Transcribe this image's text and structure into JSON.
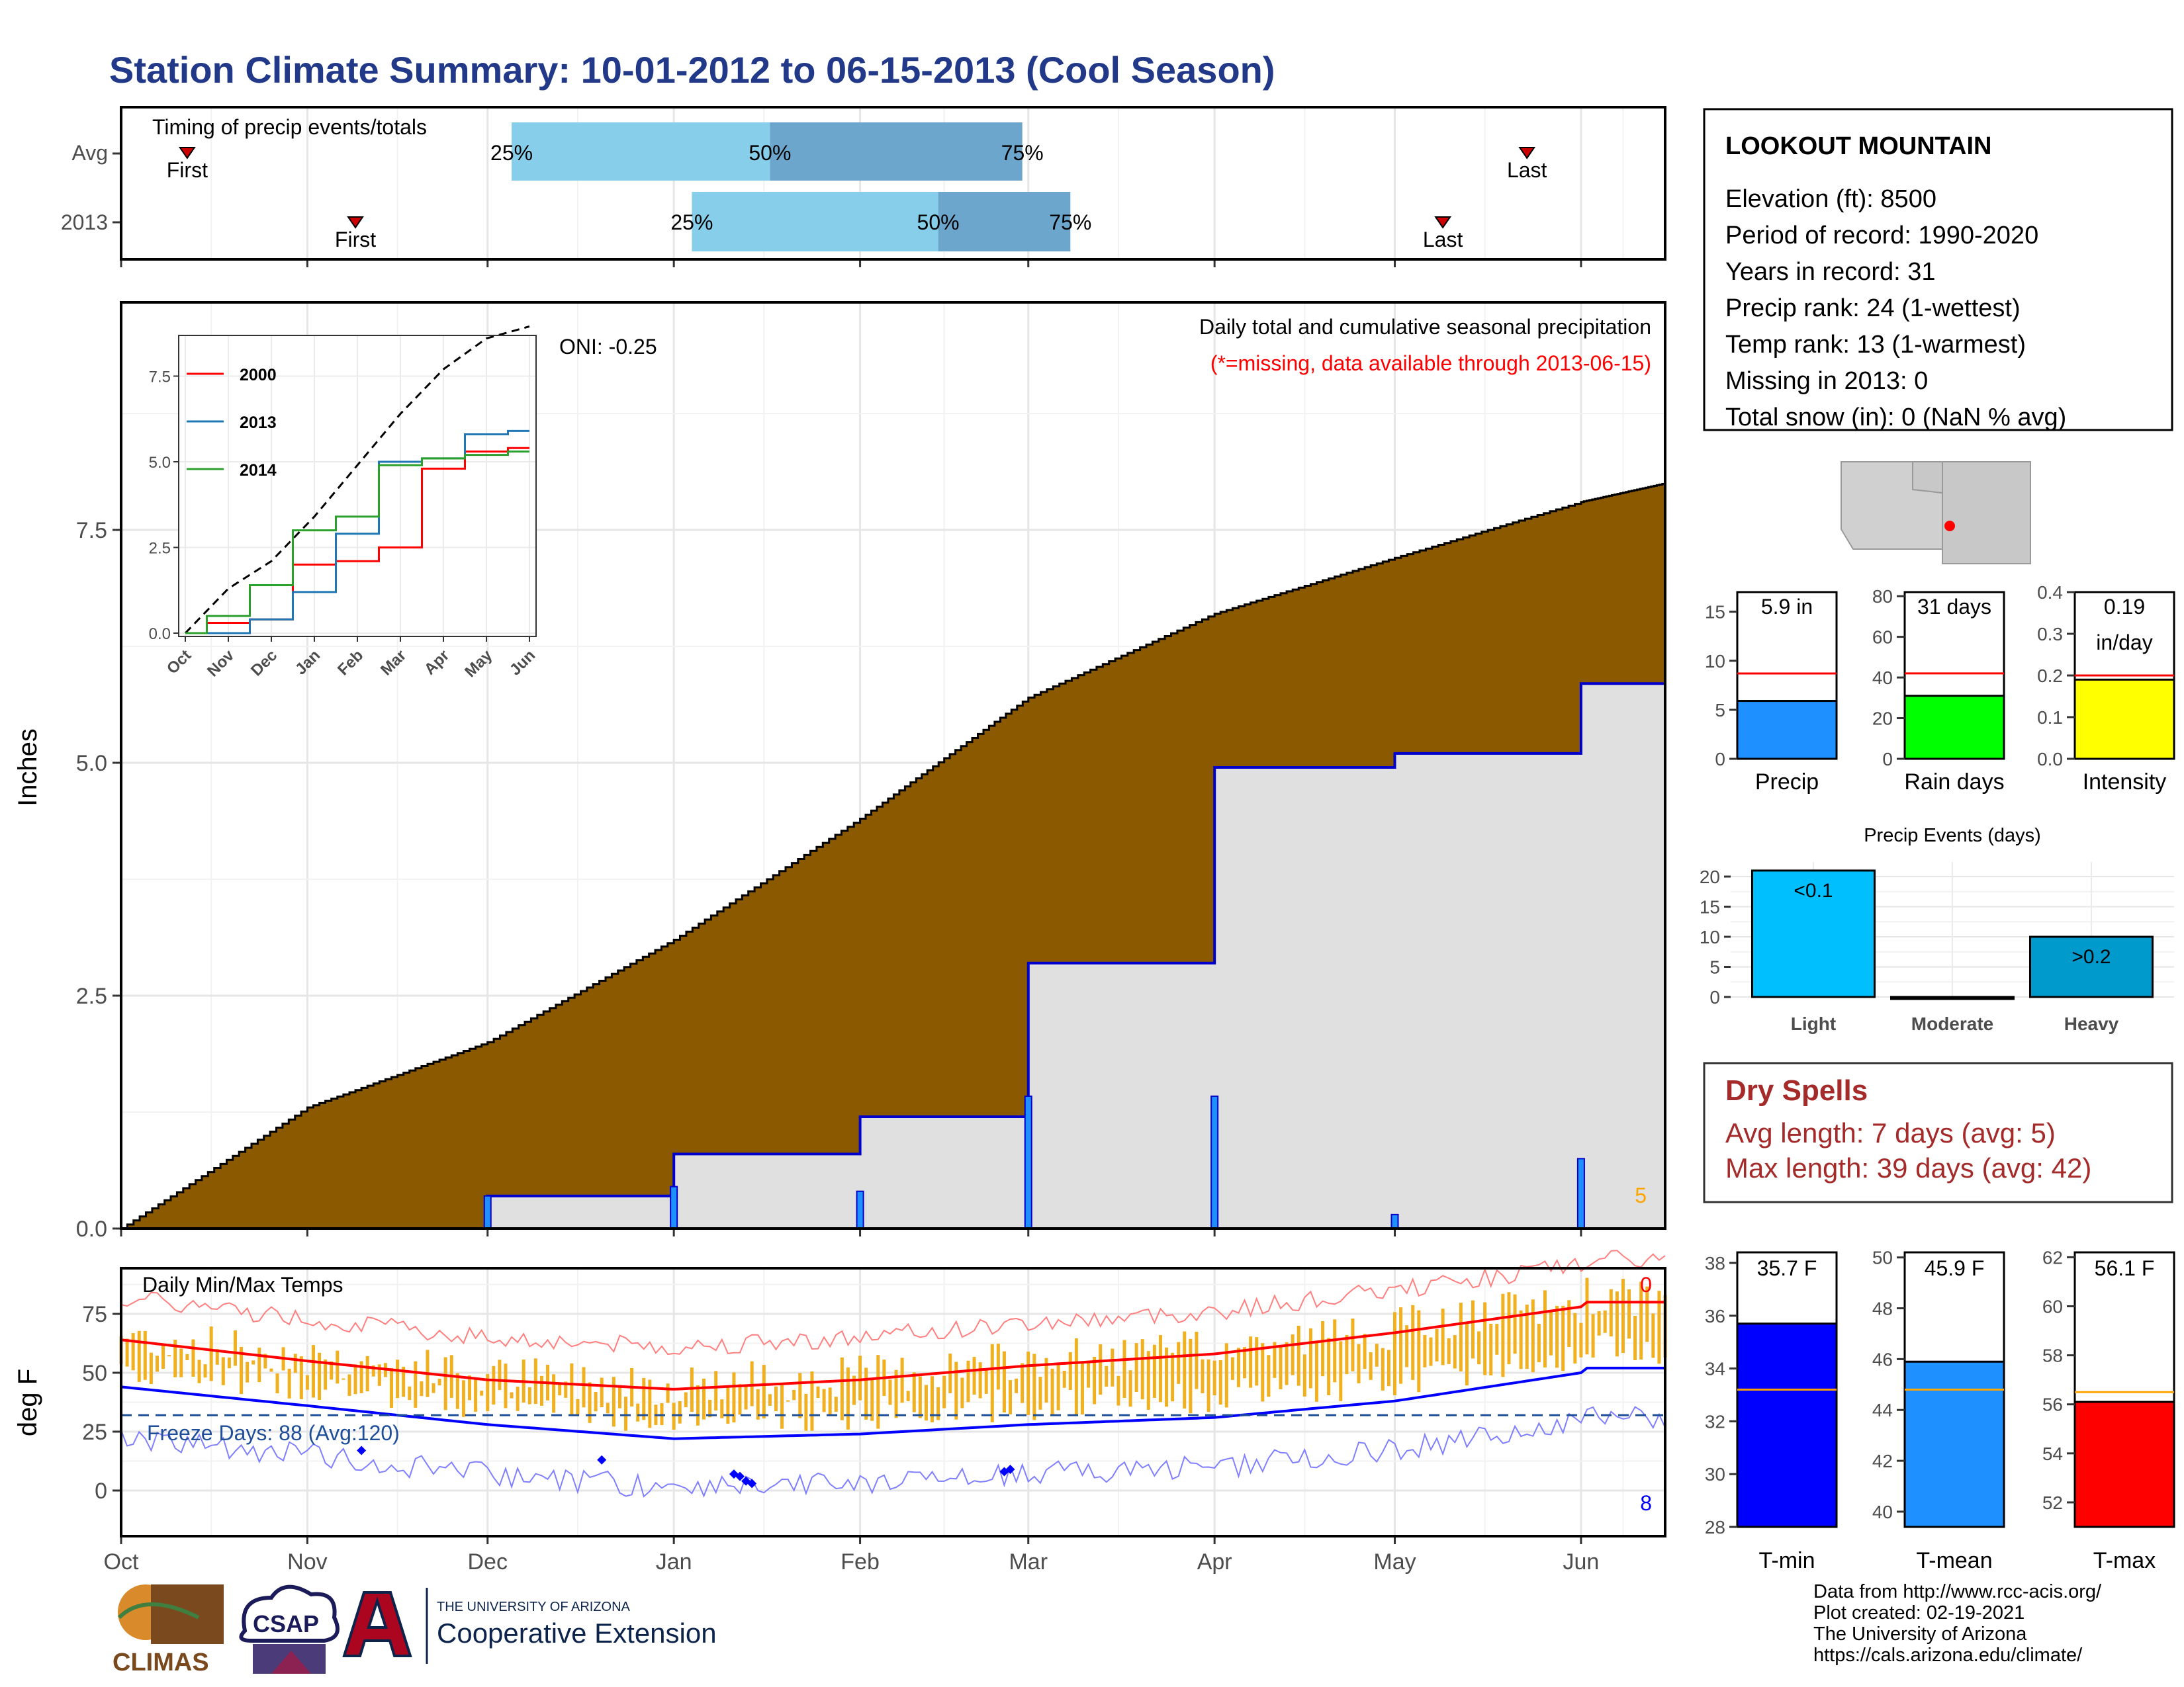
{
  "title": "Station Climate Summary: 10-01-2012 to 06-15-2013 (Cool Season)",
  "colors": {
    "title": "#22398a",
    "precip_fill": "#8b5a00",
    "current_fill": "#e0e0e0",
    "current_line": "#0000cc",
    "q_light": "#87ceeb",
    "q_dark": "#6ca6cd",
    "tmax": "#ff0000",
    "tmin": "#0000ff",
    "temp_bar": "#f0b020",
    "bar_precip": "#1e90ff",
    "bar_raindays": "#00ff00",
    "bar_intensity": "#ffff00",
    "ev_light": "#00bfff",
    "ev_heavy": "#009acd",
    "dry": "#a52a2a",
    "tbar_min": "#0000ff",
    "tbar_mean": "#1e90ff",
    "tbar_max": "#ff0000"
  },
  "timing": {
    "title": "Timing of precip events/totals",
    "rows": [
      {
        "label": "Avg",
        "first": "First",
        "q25": "25%",
        "q50": "50%",
        "q75": "75%",
        "last": "Last",
        "first_date": "2012-10-12",
        "q25_date": "2012-12-05",
        "q50_date": "2013-01-17",
        "q75_date": "2013-02-28",
        "last_date": "2013-05-23"
      },
      {
        "label": "2013",
        "first": "First",
        "q25": "25%",
        "q50": "50%",
        "q75": "75%",
        "last": "Last",
        "first_date": "2012-11-09",
        "q25_date": "2013-01-04",
        "q50_date": "2013-02-14",
        "q75_date": "2013-03-08",
        "last_date": "2013-05-09"
      }
    ]
  },
  "main_chart": {
    "ylabel": "Inches",
    "caption": "Daily total and cumulative seasonal precipitation",
    "note": "(*=missing, data available through 2013-06-15)",
    "oni": "ONI: -0.25",
    "count_label": "5",
    "yticks": [
      "0.0",
      "2.5",
      "5.0",
      "7.5"
    ],
    "xticks": [
      "Oct",
      "Nov",
      "Dec",
      "Jan",
      "Feb",
      "Mar",
      "Apr",
      "May",
      "Jun"
    ]
  },
  "inset": {
    "legend": [
      "2000",
      "2013",
      "2014"
    ],
    "yticks": [
      "0.0",
      "2.5",
      "5.0",
      "7.5"
    ],
    "xticks": [
      "Oct",
      "Nov",
      "Dec",
      "Jan",
      "Feb",
      "Mar",
      "Apr",
      "May",
      "Jun"
    ]
  },
  "temp_chart": {
    "ylabel": "deg F",
    "title": "Daily Min/Max Temps",
    "freeze": "Freeze Days: 88 (Avg:120)",
    "hot_count": "0",
    "cold_count": "8",
    "yticks": [
      "0",
      "25",
      "50",
      "75"
    ],
    "xticks": [
      "Oct",
      "Nov",
      "Dec",
      "Jan",
      "Feb",
      "Mar",
      "Apr",
      "May",
      "Jun"
    ]
  },
  "station": {
    "name": "LOOKOUT MOUNTAIN",
    "lines": [
      "Elevation (ft): 8500",
      "Period of record: 1990-2020",
      "Years in record: 31",
      "Precip rank: 24 (1-wettest)",
      "Temp rank: 13 (1-warmest)",
      "Missing in 2013: 0",
      "Total snow (in): 0 (NaN % avg)"
    ]
  },
  "summary_bars": [
    {
      "label": "Precip",
      "value_text": "5.9 in",
      "value": 5.9,
      "avg": 8.7,
      "ymax": 17,
      "ticks": [
        "0",
        "5",
        "10",
        "15"
      ],
      "tickvals": [
        0,
        5,
        10,
        15
      ]
    },
    {
      "label": "Rain days",
      "value_text": "31 days",
      "value": 31,
      "avg": 42,
      "ymax": 82,
      "ticks": [
        "0",
        "20",
        "40",
        "60",
        "80"
      ],
      "tickvals": [
        0,
        20,
        40,
        60,
        80
      ]
    },
    {
      "label": "Intensity",
      "value_text": "0.19",
      "value_text2": "in/day",
      "value": 0.19,
      "avg": 0.2,
      "ymax": 0.4,
      "ticks": [
        "0.0",
        "0.1",
        "0.2",
        "0.3",
        "0.4"
      ],
      "tickvals": [
        0,
        0.1,
        0.2,
        0.3,
        0.4
      ]
    }
  ],
  "precip_events": {
    "title": "Precip Events (days)",
    "categories": [
      "Light",
      "Moderate",
      "Heavy"
    ],
    "values": [
      21,
      0,
      10
    ],
    "bar_labels": [
      "<0.1",
      "",
      ">0.2"
    ],
    "yticks": [
      "0",
      "5",
      "10",
      "15",
      "20"
    ]
  },
  "dry_spells": {
    "title": "Dry Spells",
    "avg": "Avg length: 7 days (avg: 5)",
    "max": "Max length: 39 days (avg: 42)"
  },
  "temp_bars": [
    {
      "label": "T-min",
      "value_text": "35.7 F",
      "value": 35.7,
      "avg": 33.2,
      "ymin": 28,
      "ymax": 38.4,
      "ticks": [
        "28",
        "30",
        "32",
        "34",
        "36",
        "38"
      ],
      "tickvals": [
        28,
        30,
        32,
        34,
        36,
        38
      ]
    },
    {
      "label": "T-mean",
      "value_text": "45.9 F",
      "value": 45.9,
      "avg": 44.8,
      "ymin": 39.4,
      "ymax": 50.2,
      "ticks": [
        "40",
        "42",
        "44",
        "46",
        "48",
        "50"
      ],
      "tickvals": [
        40,
        42,
        44,
        46,
        48,
        50
      ]
    },
    {
      "label": "T-max",
      "value_text": "56.1 F",
      "value": 56.1,
      "avg": 56.5,
      "ymin": 51,
      "ymax": 62.2,
      "ticks": [
        "52",
        "54",
        "56",
        "58",
        "60",
        "62"
      ],
      "tickvals": [
        52,
        54,
        56,
        58,
        60,
        62
      ]
    }
  ],
  "footer": [
    "Data from http://www.rcc-acis.org/",
    "Plot created: 02-19-2021",
    "The University of Arizona",
    "https://cals.arizona.edu/climate/"
  ],
  "logos": {
    "climas": "CLIMAS",
    "csap": "CSAP",
    "ua_small": "THE UNIVERSITY OF ARIZONA",
    "ua_big": "Cooperative Extension"
  },
  "chart_data": [
    {
      "type": "area",
      "title": "Daily total and cumulative seasonal precipitation",
      "ylabel": "Inches",
      "x": [
        "2012-10-01",
        "2012-11-01",
        "2012-12-01",
        "2013-01-01",
        "2013-02-01",
        "2013-03-01",
        "2013-04-01",
        "2013-05-01",
        "2013-06-01",
        "2013-06-15"
      ],
      "series": [
        {
          "values": [
            0.0,
            1.3,
            2.0,
            3.1,
            4.4,
            5.7,
            6.6,
            7.2,
            7.8,
            8.0
          ]
        },
        {
          "values": [
            0.0,
            0.0,
            0.35,
            0.8,
            1.2,
            2.85,
            4.95,
            5.1,
            5.85,
            5.85
          ]
        }
      ],
      "ylim": [
        0,
        8.2
      ]
    },
    {
      "type": "line",
      "x": [
        "Oct",
        "Nov",
        "Dec",
        "Jan",
        "Feb",
        "Mar",
        "Apr",
        "May",
        "Jun"
      ],
      "series": [
        {
          "name": "2000",
          "values": [
            0.0,
            0.3,
            0.4,
            2.0,
            2.1,
            2.5,
            4.8,
            5.3,
            5.4
          ]
        },
        {
          "name": "2013",
          "values": [
            0.0,
            0.0,
            0.4,
            1.2,
            2.9,
            5.0,
            5.1,
            5.8,
            5.9
          ]
        },
        {
          "name": "2014",
          "values": [
            0.0,
            0.5,
            1.4,
            3.0,
            3.4,
            4.9,
            5.1,
            5.2,
            5.3
          ]
        }
      ],
      "ylim": [
        0,
        9
      ]
    },
    {
      "type": "line",
      "title": "Daily Min/Max Temps",
      "ylabel": "deg F",
      "x": [
        "Oct",
        "Nov",
        "Dec",
        "Jan",
        "Feb",
        "Mar",
        "Apr",
        "May",
        "Jun"
      ],
      "series": [
        {
          "values": [
            64,
            55,
            47,
            43,
            47,
            53,
            58,
            67,
            78
          ]
        },
        {
          "values": [
            44,
            36,
            28,
            22,
            24,
            28,
            31,
            38,
            50
          ]
        }
      ],
      "ylim": [
        -18,
        95
      ]
    },
    {
      "type": "bar",
      "categories": [
        "Light",
        "Moderate",
        "Heavy"
      ],
      "values": [
        21,
        0,
        10
      ],
      "title": "Precip Events (days)"
    }
  ]
}
